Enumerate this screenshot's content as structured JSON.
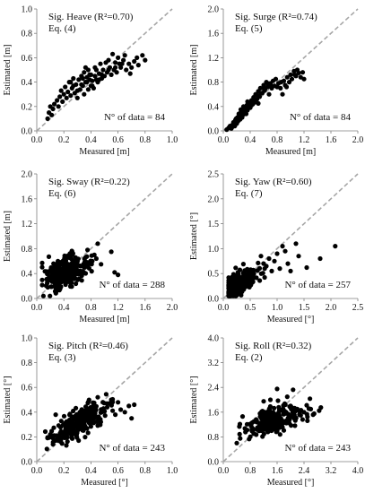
{
  "colors": {
    "points": "#000000",
    "identity_line": "#a6a6a6",
    "axis": "#7f7f7f",
    "background": "#ffffff"
  },
  "chart_data": [
    {
      "type": "scatter",
      "title": "Sig. Heave (R²=0.70)",
      "equation": "Eq. (4)",
      "n_label": "N° of data = 84",
      "xlabel": "Measured [m]",
      "ylabel": "Estimated [m]",
      "xlim": [
        0,
        1.0
      ],
      "ylim": [
        0,
        1.0
      ],
      "xticks": [
        "0.0",
        "0.2",
        "0.4",
        "0.6",
        "0.8",
        "1.0"
      ],
      "yticks": [
        "0.0",
        "0.2",
        "0.4",
        "0.6",
        "0.8",
        "1.0"
      ],
      "identity_line": true,
      "grid": false,
      "points": [
        [
          0.08,
          0.1
        ],
        [
          0.09,
          0.15
        ],
        [
          0.1,
          0.2
        ],
        [
          0.11,
          0.13
        ],
        [
          0.12,
          0.18
        ],
        [
          0.13,
          0.22
        ],
        [
          0.15,
          0.25
        ],
        [
          0.16,
          0.2
        ],
        [
          0.17,
          0.28
        ],
        [
          0.18,
          0.33
        ],
        [
          0.19,
          0.24
        ],
        [
          0.2,
          0.3
        ],
        [
          0.21,
          0.36
        ],
        [
          0.22,
          0.27
        ],
        [
          0.23,
          0.32
        ],
        [
          0.24,
          0.4
        ],
        [
          0.25,
          0.29
        ],
        [
          0.26,
          0.35
        ],
        [
          0.27,
          0.43
        ],
        [
          0.28,
          0.31
        ],
        [
          0.29,
          0.38
        ],
        [
          0.3,
          0.27
        ],
        [
          0.31,
          0.42
        ],
        [
          0.32,
          0.34
        ],
        [
          0.33,
          0.45
        ],
        [
          0.34,
          0.37
        ],
        [
          0.35,
          0.48
        ],
        [
          0.35,
          0.3
        ],
        [
          0.36,
          0.4
        ],
        [
          0.37,
          0.44
        ],
        [
          0.38,
          0.34
        ],
        [
          0.38,
          0.5
        ],
        [
          0.39,
          0.42
        ],
        [
          0.4,
          0.37
        ],
        [
          0.4,
          0.46
        ],
        [
          0.41,
          0.41
        ],
        [
          0.42,
          0.35
        ],
        [
          0.43,
          0.45
        ],
        [
          0.44,
          0.5
        ],
        [
          0.45,
          0.4
        ],
        [
          0.46,
          0.47
        ],
        [
          0.47,
          0.55
        ],
        [
          0.48,
          0.43
        ],
        [
          0.49,
          0.5
        ],
        [
          0.5,
          0.45
        ],
        [
          0.51,
          0.56
        ],
        [
          0.52,
          0.48
        ],
        [
          0.53,
          0.58
        ],
        [
          0.54,
          0.52
        ],
        [
          0.55,
          0.46
        ],
        [
          0.56,
          0.63
        ],
        [
          0.57,
          0.5
        ],
        [
          0.58,
          0.56
        ],
        [
          0.59,
          0.48
        ],
        [
          0.6,
          0.6
        ],
        [
          0.61,
          0.55
        ],
        [
          0.62,
          0.52
        ],
        [
          0.64,
          0.58
        ],
        [
          0.65,
          0.62
        ],
        [
          0.66,
          0.5
        ],
        [
          0.68,
          0.55
        ],
        [
          0.69,
          0.47
        ],
        [
          0.7,
          0.52
        ],
        [
          0.72,
          0.57
        ],
        [
          0.74,
          0.6
        ],
        [
          0.75,
          0.54
        ],
        [
          0.78,
          0.62
        ],
        [
          0.8,
          0.58
        ],
        [
          0.33,
          0.38
        ],
        [
          0.36,
          0.52
        ],
        [
          0.37,
          0.4
        ],
        [
          0.39,
          0.46
        ],
        [
          0.41,
          0.37
        ],
        [
          0.43,
          0.52
        ],
        [
          0.44,
          0.42
        ],
        [
          0.46,
          0.42
        ],
        [
          0.3,
          0.33
        ],
        [
          0.27,
          0.37
        ],
        [
          0.25,
          0.4
        ],
        [
          0.34,
          0.43
        ],
        [
          0.48,
          0.46
        ],
        [
          0.53,
          0.5
        ],
        [
          0.58,
          0.52
        ],
        [
          0.63,
          0.55
        ]
      ]
    },
    {
      "type": "scatter",
      "title": "Sig. Surge (R²=0.74)",
      "equation": "Eq. (5)",
      "n_label": "N° of data = 84",
      "xlabel": "Measured [m]",
      "ylabel": "Estimated [m]",
      "xlim": [
        0,
        2.0
      ],
      "ylim": [
        0,
        2.0
      ],
      "xticks": [
        "0.0",
        "0.4",
        "0.8",
        "1.2",
        "1.6",
        "2.0"
      ],
      "yticks": [
        "0.0",
        "0.4",
        "0.8",
        "1.2",
        "1.6",
        "2.0"
      ],
      "identity_line": true,
      "grid": false,
      "points": [
        [
          0.05,
          0.02
        ],
        [
          0.08,
          0.05
        ],
        [
          0.1,
          0.08
        ],
        [
          0.12,
          0.04
        ],
        [
          0.14,
          0.1
        ],
        [
          0.15,
          0.14
        ],
        [
          0.17,
          0.08
        ],
        [
          0.18,
          0.18
        ],
        [
          0.2,
          0.12
        ],
        [
          0.21,
          0.22
        ],
        [
          0.22,
          0.16
        ],
        [
          0.24,
          0.25
        ],
        [
          0.25,
          0.19
        ],
        [
          0.26,
          0.3
        ],
        [
          0.28,
          0.22
        ],
        [
          0.29,
          0.33
        ],
        [
          0.3,
          0.27
        ],
        [
          0.32,
          0.38
        ],
        [
          0.33,
          0.3
        ],
        [
          0.35,
          0.42
        ],
        [
          0.36,
          0.34
        ],
        [
          0.38,
          0.45
        ],
        [
          0.4,
          0.38
        ],
        [
          0.42,
          0.5
        ],
        [
          0.44,
          0.44
        ],
        [
          0.45,
          0.55
        ],
        [
          0.47,
          0.47
        ],
        [
          0.48,
          0.6
        ],
        [
          0.5,
          0.52
        ],
        [
          0.52,
          0.65
        ],
        [
          0.54,
          0.56
        ],
        [
          0.55,
          0.7
        ],
        [
          0.58,
          0.62
        ],
        [
          0.6,
          0.75
        ],
        [
          0.62,
          0.68
        ],
        [
          0.64,
          0.8
        ],
        [
          0.66,
          0.72
        ],
        [
          0.68,
          0.6
        ],
        [
          0.7,
          0.78
        ],
        [
          0.72,
          0.7
        ],
        [
          0.74,
          0.82
        ],
        [
          0.76,
          0.74
        ],
        [
          0.78,
          0.85
        ],
        [
          0.8,
          0.72
        ],
        [
          0.82,
          0.78
        ],
        [
          0.85,
          0.7
        ],
        [
          0.88,
          0.6
        ],
        [
          0.9,
          0.82
        ],
        [
          0.92,
          0.75
        ],
        [
          0.95,
          0.88
        ],
        [
          0.98,
          0.8
        ],
        [
          1.0,
          0.92
        ],
        [
          1.02,
          0.85
        ],
        [
          1.05,
          0.98
        ],
        [
          1.08,
          0.9
        ],
        [
          1.1,
          1.0
        ],
        [
          1.12,
          0.95
        ],
        [
          1.15,
          0.88
        ],
        [
          1.18,
          0.96
        ],
        [
          1.2,
          0.85
        ],
        [
          0.13,
          0.06
        ],
        [
          0.16,
          0.12
        ],
        [
          0.19,
          0.2
        ],
        [
          0.23,
          0.28
        ],
        [
          0.27,
          0.26
        ],
        [
          0.31,
          0.35
        ],
        [
          0.34,
          0.28
        ],
        [
          0.37,
          0.4
        ],
        [
          0.41,
          0.46
        ],
        [
          0.46,
          0.5
        ],
        [
          0.51,
          0.58
        ],
        [
          0.56,
          0.62
        ],
        [
          0.61,
          0.66
        ],
        [
          0.66,
          0.78
        ],
        [
          0.71,
          0.74
        ],
        [
          0.36,
          0.48
        ],
        [
          0.3,
          0.4
        ],
        [
          0.26,
          0.35
        ],
        [
          0.42,
          0.42
        ],
        [
          0.86,
          0.8
        ],
        [
          0.94,
          0.72
        ],
        [
          1.06,
          0.92
        ],
        [
          0.6,
          0.7
        ],
        [
          0.52,
          0.45
        ]
      ]
    },
    {
      "type": "scatter",
      "title": "Sig. Sway (R²=0.22)",
      "equation": "Eq. (6)",
      "n_label": "N° of data = 288",
      "xlabel": "Measured [m]",
      "ylabel": "Estimated [m]",
      "xlim": [
        0,
        2.0
      ],
      "ylim": [
        0,
        2.0
      ],
      "xticks": [
        "0.0",
        "0.4",
        "0.8",
        "1.2",
        "1.6",
        "2.0"
      ],
      "yticks": [
        "0.0",
        "0.4",
        "0.8",
        "1.2",
        "1.6",
        "2.0"
      ],
      "identity_line": true,
      "grid": false,
      "cloud": {
        "count": 276,
        "x_center": 0.42,
        "x_spread": 0.15,
        "y_center": 0.42,
        "y_spread": 0.12,
        "slope": 0.35
      },
      "points": [
        [
          1.1,
          0.75
        ],
        [
          1.15,
          0.42
        ],
        [
          1.2,
          0.38
        ],
        [
          0.9,
          0.88
        ],
        [
          0.85,
          0.7
        ],
        [
          0.82,
          0.6
        ],
        [
          0.75,
          0.78
        ],
        [
          0.95,
          0.55
        ],
        [
          0.72,
          0.66
        ],
        [
          0.7,
          0.5
        ],
        [
          0.78,
          0.58
        ],
        [
          0.88,
          0.64
        ]
      ]
    },
    {
      "type": "scatter",
      "title": "Sig. Yaw (R²=0.60)",
      "equation": "Eq. (7)",
      "n_label": "N° of data = 257",
      "xlabel": "Measured [°]",
      "ylabel": "Estimated [°]",
      "xlim": [
        0,
        2.5
      ],
      "ylim": [
        0,
        2.5
      ],
      "xticks": [
        "0.0",
        "0.5",
        "1.0",
        "1.5",
        "2.0",
        "2.5"
      ],
      "yticks": [
        "0.0",
        "0.5",
        "1.0",
        "1.5",
        "2.0",
        "2.5"
      ],
      "identity_line": true,
      "grid": false,
      "cloud": {
        "count": 240,
        "x_center": 0.3,
        "x_spread": 0.18,
        "y_center": 0.3,
        "y_spread": 0.12,
        "slope": 0.55
      },
      "points": [
        [
          2.08,
          1.05
        ],
        [
          1.8,
          0.8
        ],
        [
          1.55,
          0.62
        ],
        [
          1.4,
          0.85
        ],
        [
          1.35,
          1.1
        ],
        [
          1.2,
          0.7
        ],
        [
          1.15,
          0.95
        ],
        [
          1.1,
          1.05
        ],
        [
          1.05,
          0.6
        ],
        [
          1.0,
          0.9
        ],
        [
          0.95,
          0.75
        ],
        [
          0.9,
          0.55
        ],
        [
          0.85,
          0.8
        ],
        [
          0.8,
          0.65
        ],
        [
          0.75,
          0.7
        ],
        [
          0.7,
          0.85
        ],
        [
          1.25,
          0.55
        ]
      ]
    },
    {
      "type": "scatter",
      "title": "Sig. Pitch (R²=0.46)",
      "equation": "Eq. (3)",
      "n_label": "N° of data = 243",
      "xlabel": "Measured [°]",
      "ylabel": "Estimated [°]",
      "xlim": [
        0,
        1.0
      ],
      "ylim": [
        0,
        1.0
      ],
      "xticks": [
        "0.0",
        "0.2",
        "0.4",
        "0.6",
        "0.8",
        "1.0"
      ],
      "yticks": [
        "0.0",
        "0.2",
        "0.4",
        "0.6",
        "0.8",
        "1.0"
      ],
      "identity_line": true,
      "grid": false,
      "cloud": {
        "count": 230,
        "x_center": 0.3,
        "x_spread": 0.1,
        "y_center": 0.3,
        "y_spread": 0.06,
        "slope": 0.55
      },
      "points": [
        [
          0.72,
          0.46
        ],
        [
          0.7,
          0.35
        ],
        [
          0.68,
          0.45
        ],
        [
          0.65,
          0.4
        ],
        [
          0.62,
          0.42
        ],
        [
          0.6,
          0.48
        ],
        [
          0.58,
          0.38
        ],
        [
          0.55,
          0.5
        ],
        [
          0.52,
          0.44
        ],
        [
          0.12,
          0.14
        ],
        [
          0.1,
          0.22
        ],
        [
          0.14,
          0.38
        ],
        [
          0.45,
          0.52
        ]
      ]
    },
    {
      "type": "scatter",
      "title": "Sig. Roll (R²=0.32)",
      "equation": "Eq. (2)",
      "n_label": "N° of data = 243",
      "xlabel": "Measured [°]",
      "ylabel": "Estimated [°]",
      "xlim": [
        0,
        4.0
      ],
      "ylim": [
        0,
        4.0
      ],
      "xticks": [
        "0.0",
        "0.8",
        "1.6",
        "2.4",
        "3.2",
        "4.0"
      ],
      "yticks": [
        "0.0",
        "0.8",
        "1.6",
        "2.4",
        "3.2",
        "4.0"
      ],
      "identity_line": true,
      "grid": false,
      "cloud": {
        "count": 228,
        "x_center": 1.5,
        "x_spread": 0.45,
        "y_center": 1.35,
        "y_spread": 0.2,
        "slope": 0.3
      },
      "points": [
        [
          2.9,
          1.75
        ],
        [
          2.85,
          1.65
        ],
        [
          2.6,
          1.7
        ],
        [
          2.5,
          1.45
        ],
        [
          2.4,
          1.6
        ],
        [
          2.3,
          1.5
        ],
        [
          2.2,
          1.7
        ],
        [
          0.4,
          0.6
        ],
        [
          0.5,
          0.75
        ],
        [
          1.6,
          2.35
        ],
        [
          1.9,
          2.1
        ],
        [
          1.4,
          2.0
        ],
        [
          1.2,
          1.95
        ],
        [
          2.0,
          1.8
        ],
        [
          2.7,
          1.55
        ]
      ]
    }
  ]
}
